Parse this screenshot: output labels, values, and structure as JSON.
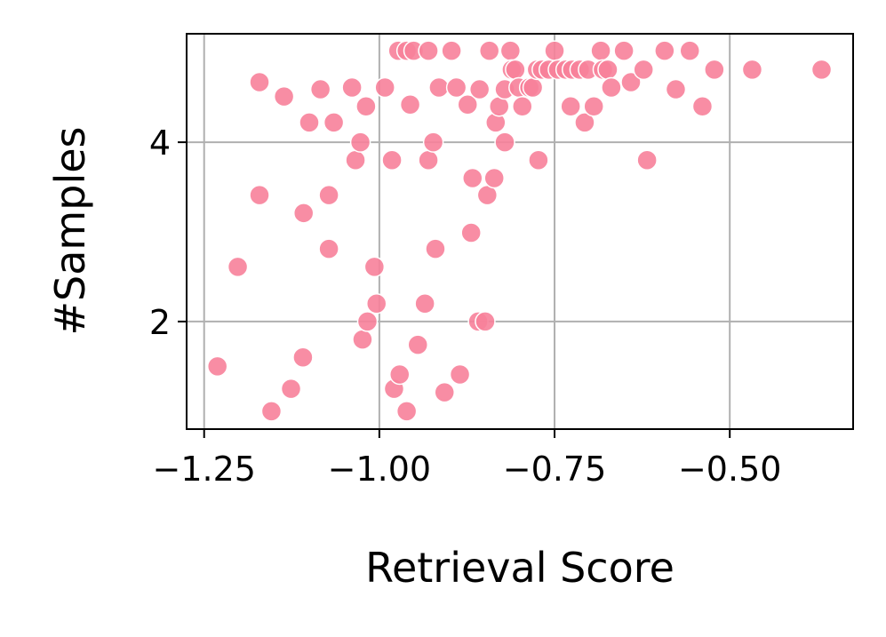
{
  "chart_data": {
    "type": "scatter",
    "xlabel": "Retrieval Score",
    "ylabel": "#Samples",
    "color": "#f7819a",
    "grid": true,
    "xlim": [
      -1.275,
      -0.324
    ],
    "ylim": [
      0.8,
      5.21
    ],
    "xticks": [
      {
        "value": -1.25,
        "label": "−1.25"
      },
      {
        "value": -1.0,
        "label": "−1.00"
      },
      {
        "value": -0.75,
        "label": "−0.75"
      },
      {
        "value": -0.5,
        "label": "−0.50"
      }
    ],
    "yticks": [
      2,
      4
    ],
    "x": [
      -1.231,
      -1.202,
      -1.171,
      -1.171,
      -1.154,
      -1.136,
      -1.126,
      -1.108,
      -1.109,
      -1.1,
      -1.084,
      -1.072,
      -1.072,
      -1.065,
      -1.039,
      -1.034,
      -1.027,
      -1.024,
      -1.017,
      -1.019,
      -1.007,
      -1.004,
      -0.992,
      -0.982,
      -0.979,
      -0.971,
      -0.973,
      -0.961,
      -0.956,
      -0.961,
      -0.951,
      -0.945,
      -0.935,
      -0.93,
      -0.93,
      -0.923,
      -0.92,
      -0.915,
      -0.907,
      -0.897,
      -0.89,
      -0.885,
      -0.874,
      -0.869,
      -0.867,
      -0.857,
      -0.859,
      -0.849,
      -0.846,
      -0.843,
      -0.836,
      -0.834,
      -0.829,
      -0.821,
      -0.821,
      -0.813,
      -0.811,
      -0.806,
      -0.801,
      -0.796,
      -0.786,
      -0.781,
      -0.775,
      -0.773,
      -0.768,
      -0.758,
      -0.75,
      -0.745,
      -0.734,
      -0.727,
      -0.725,
      -0.714,
      -0.707,
      -0.702,
      -0.694,
      -0.684,
      -0.681,
      -0.674,
      -0.669,
      -0.651,
      -0.641,
      -0.623,
      -0.618,
      -0.593,
      -0.577,
      -0.557,
      -0.539,
      -0.522,
      -0.468,
      -0.369
    ],
    "values": [
      1.5,
      2.61,
      4.67,
      3.41,
      1.0,
      4.51,
      1.25,
      3.21,
      1.6,
      4.22,
      4.59,
      2.81,
      3.41,
      4.22,
      4.61,
      3.8,
      4.0,
      1.8,
      2.0,
      4.4,
      2.61,
      2.2,
      4.61,
      3.8,
      1.25,
      1.41,
      5.02,
      1.0,
      4.42,
      5.02,
      5.02,
      1.74,
      2.2,
      5.02,
      3.8,
      4.0,
      2.81,
      4.61,
      1.21,
      5.02,
      4.61,
      1.41,
      4.42,
      2.99,
      3.6,
      4.59,
      2.0,
      2.0,
      3.41,
      5.02,
      3.6,
      4.22,
      4.4,
      4.0,
      4.59,
      5.02,
      4.81,
      4.81,
      4.61,
      4.4,
      4.61,
      4.61,
      4.81,
      3.8,
      4.81,
      4.81,
      5.02,
      4.81,
      4.81,
      4.4,
      4.81,
      4.81,
      4.22,
      4.81,
      4.4,
      5.02,
      4.81,
      4.81,
      4.61,
      5.02,
      4.67,
      4.81,
      3.8,
      5.02,
      4.59,
      5.02,
      4.4,
      4.81,
      4.81,
      4.81
    ]
  }
}
